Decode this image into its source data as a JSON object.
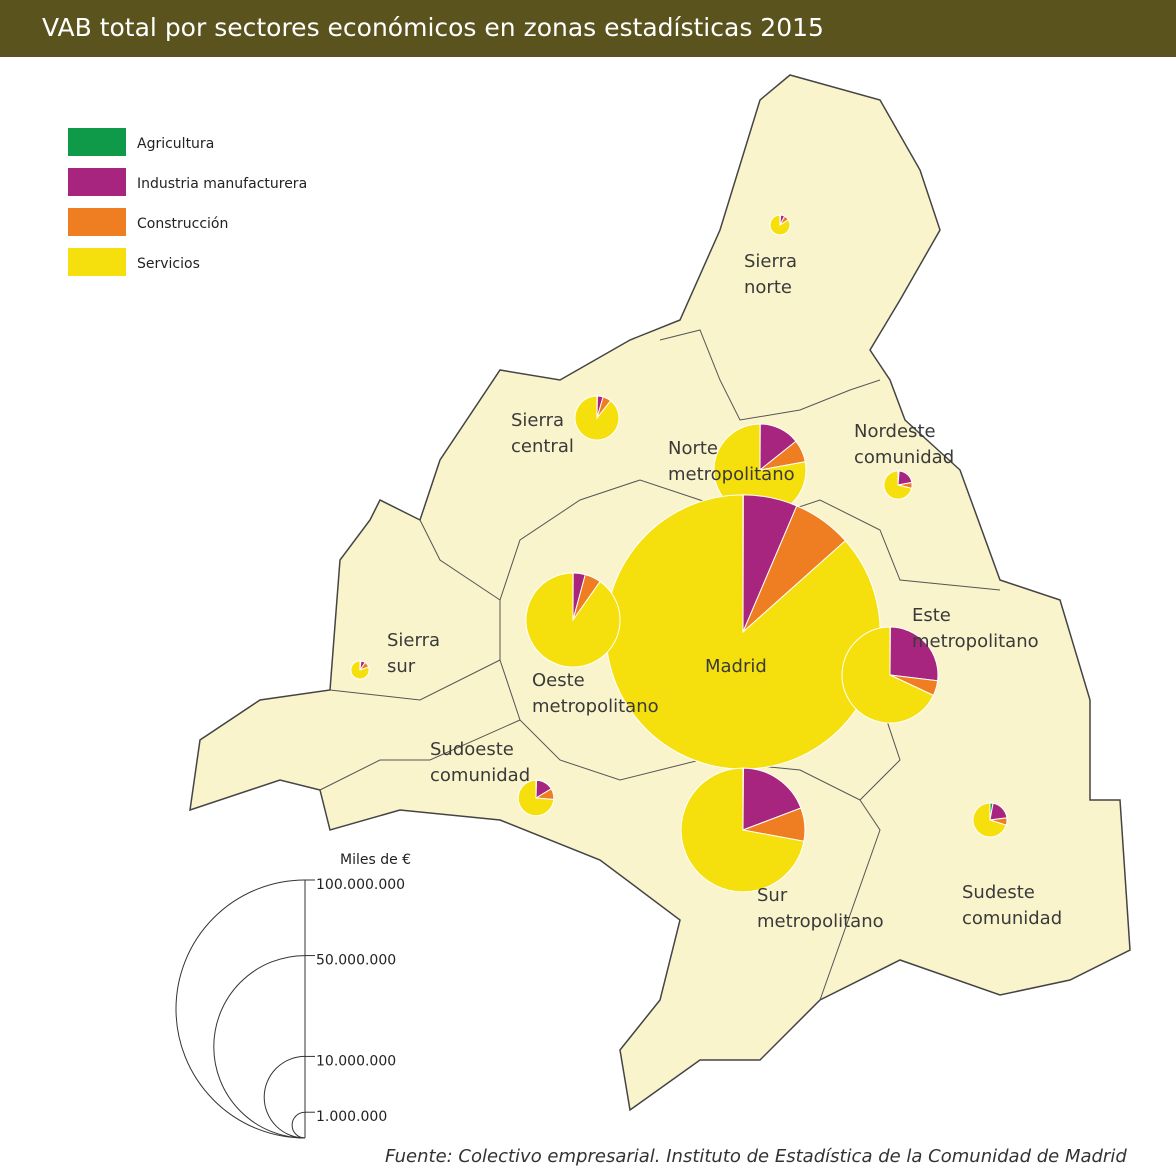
{
  "chart_data": {
    "type": "pie",
    "title": "VAB total por sectores económicos en zonas estadísticas  2015",
    "source": "Fuente: Colectivo empresarial. Instituto de Estadística de la Comunidad de Madrid",
    "sectors": [
      {
        "name": "Agricultura",
        "color": "#0f9a4a"
      },
      {
        "name": "Industria manufacturera",
        "color": "#a8257f"
      },
      {
        "name": "Construcción",
        "color": "#ef7d22"
      },
      {
        "name": "Servicios",
        "color": "#f5e00d"
      }
    ],
    "zones": [
      {
        "label": [
          "Sierra",
          "norte"
        ],
        "values": [
          6000,
          40000,
          50000,
          500000
        ]
      },
      {
        "label": [
          "Sierra",
          "central"
        ],
        "values": [
          10000,
          120000,
          180000,
          2600000
        ]
      },
      {
        "label": [
          "Norte",
          "metropolitano"
        ],
        "values": [
          13000,
          1800000,
          1000000,
          9900000
        ]
      },
      {
        "label": [
          "Nordeste",
          "comunidad"
        ],
        "values": [
          15000,
          250000,
          80000,
          850000
        ]
      },
      {
        "label": [
          "Madrid"
        ],
        "values": [
          50000,
          7200000,
          7900000,
          97850000
        ]
      },
      {
        "label": [
          "Este",
          "metropolitano"
        ],
        "values": [
          20000,
          3700000,
          700000,
          9400000
        ]
      },
      {
        "label": [
          "Oeste",
          "metropolitano"
        ],
        "values": [
          10000,
          550000,
          740000,
          12000000
        ]
      },
      {
        "label": [
          "Sierra",
          "sur"
        ],
        "values": [
          8000,
          40000,
          50000,
          400000
        ]
      },
      {
        "label": [
          "Sudoeste",
          "comunidad"
        ],
        "values": [
          10000,
          300000,
          190000,
          1400000
        ]
      },
      {
        "label": [
          "Sur",
          "metropolitano"
        ],
        "values": [
          30000,
          4400000,
          2000000,
          16600000
        ]
      },
      {
        "label": [
          "Sudeste",
          "comunidad"
        ],
        "values": [
          50000,
          350000,
          120000,
          1220000
        ]
      }
    ],
    "size_legend": {
      "title": "Miles de €",
      "ticks": [
        {
          "value": 100000000,
          "label": "100.000.000"
        },
        {
          "value": 50000000,
          "label": "50.000.000"
        },
        {
          "value": 10000000,
          "label": "10.000.000"
        },
        {
          "value": 1000000,
          "label": "1.000.000"
        }
      ]
    }
  }
}
